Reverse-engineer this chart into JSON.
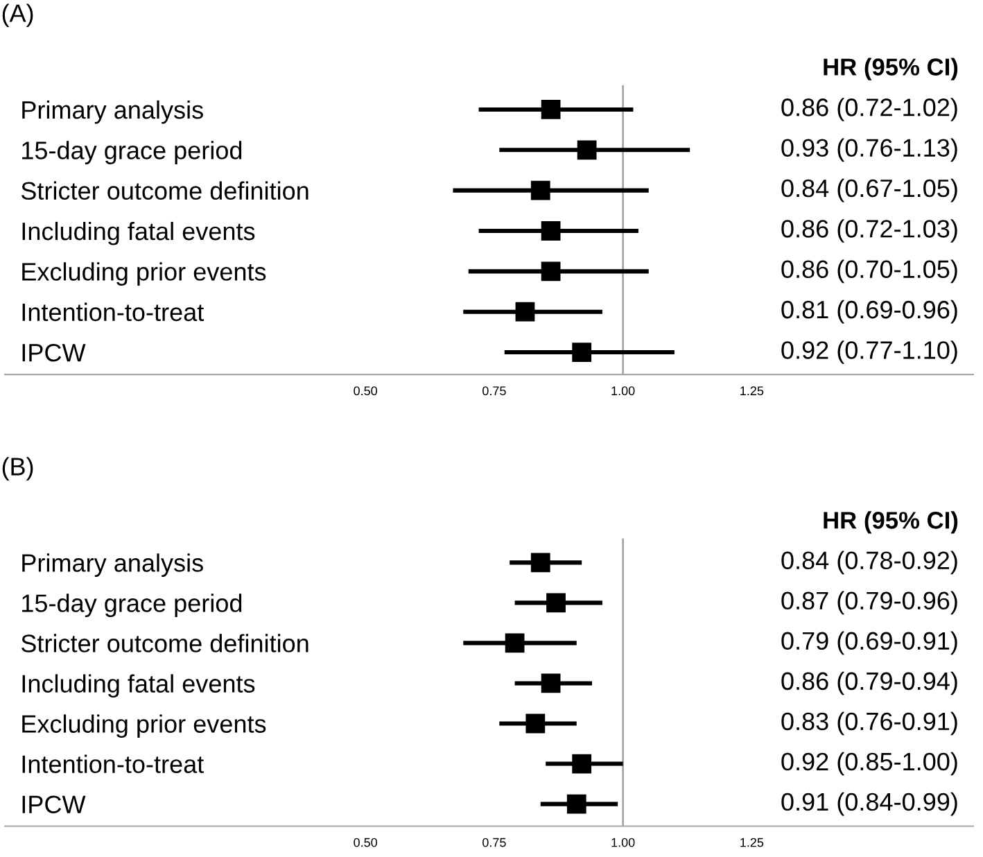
{
  "chart_data": [
    {
      "type": "scatter",
      "orientation": "horizontal",
      "title": "(A)",
      "annotations": [
        "HR (95% CI)",
        "0.86 (0.72-1.02)",
        "0.93 (0.76-1.13)",
        "0.84 (0.67-1.05)",
        "0.86 (0.72-1.03)",
        "0.86 (0.70-1.05)",
        "0.81 (0.69-0.96)",
        "0.92 (0.77-1.10)"
      ],
      "categories": [
        "Primary analysis",
        "15-day grace period",
        "Stricter outcome definition",
        "Including fatal events",
        "Excluding prior events",
        "Intention-to-treat",
        "IPCW"
      ],
      "values": [
        0.86,
        0.93,
        0.84,
        0.86,
        0.86,
        0.81,
        0.92
      ],
      "errors": [
        [
          0.72,
          1.02
        ],
        [
          0.76,
          1.13
        ],
        [
          0.67,
          1.05
        ],
        [
          0.72,
          1.03
        ],
        [
          0.7,
          1.05
        ],
        [
          0.69,
          0.96
        ],
        [
          0.77,
          1.1
        ]
      ],
      "color": "#000000",
      "marker": "square",
      "grid": false,
      "xlim": [
        -0.2,
        1.68
      ],
      "xticks": [
        {
          "value": 0.5,
          "label": "0.50"
        },
        {
          "value": 0.75,
          "label": "0.75"
        },
        {
          "value": 1.0,
          "label": "1.00"
        },
        {
          "value": 1.25,
          "label": "1.25"
        }
      ],
      "ref_lines": [
        {
          "axis": "x",
          "value": 1.0,
          "color": "#a6a6a6"
        }
      ]
    },
    {
      "type": "scatter",
      "orientation": "horizontal",
      "title": "(B)",
      "annotations": [
        "HR (95% CI)",
        "0.84 (0.78-0.92)",
        "0.87 (0.79-0.96)",
        "0.79 (0.69-0.91)",
        "0.86 (0.79-0.94)",
        "0.83 (0.76-0.91)",
        "0.92 (0.85-1.00)",
        "0.91 (0.84-0.99)"
      ],
      "categories": [
        "Primary analysis",
        "15-day grace period",
        "Stricter outcome definition",
        "Including fatal events",
        "Excluding prior events",
        "Intention-to-treat",
        "IPCW"
      ],
      "values": [
        0.84,
        0.87,
        0.79,
        0.86,
        0.83,
        0.92,
        0.91
      ],
      "errors": [
        [
          0.78,
          0.92
        ],
        [
          0.79,
          0.96
        ],
        [
          0.69,
          0.91
        ],
        [
          0.79,
          0.94
        ],
        [
          0.76,
          0.91
        ],
        [
          0.85,
          1.0
        ],
        [
          0.84,
          0.99
        ]
      ],
      "color": "#000000",
      "marker": "square",
      "grid": false,
      "xlim": [
        -0.2,
        1.68
      ],
      "xticks": [
        {
          "value": 0.5,
          "label": "0.50"
        },
        {
          "value": 0.75,
          "label": "0.75"
        },
        {
          "value": 1.0,
          "label": "1.00"
        },
        {
          "value": 1.25,
          "label": "1.25"
        }
      ],
      "ref_lines": [
        {
          "axis": "x",
          "value": 1.0,
          "color": "#a6a6a6"
        }
      ]
    }
  ]
}
